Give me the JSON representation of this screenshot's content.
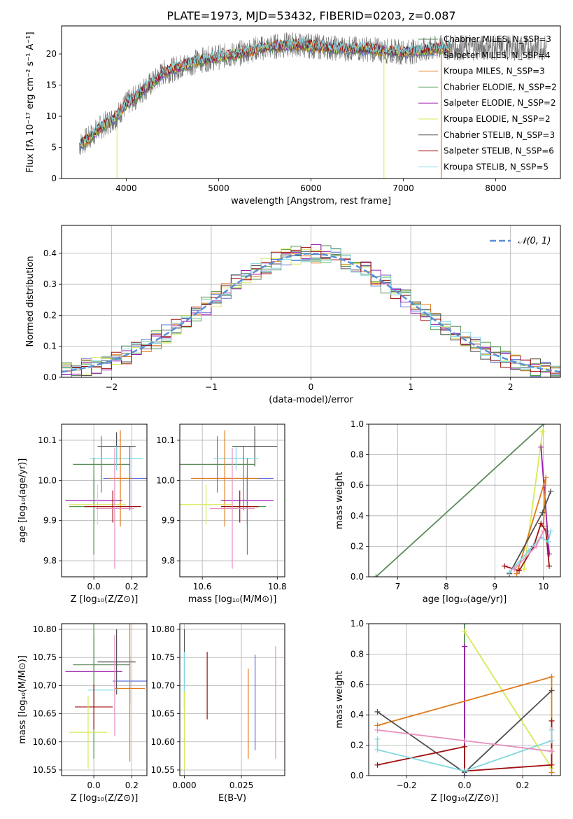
{
  "figure_title": "PLATE=1973, MJD=53432, FIBERID=0203, z=0.087",
  "colors": {
    "chabrier_miles": "#5a8a5a",
    "salpeter_miles": "#5a6fd8",
    "kroupa_miles": "#e07a1a",
    "chabrier_elodie": "#4a9a4a",
    "salpeter_elodie": "#9a1aaa",
    "kroupa_elodie": "#d8e858",
    "chabrier_stelib": "#505050",
    "salpeter_stelib": "#a01010",
    "kroupa_stelib": "#80d8e0",
    "pink": "#e890c0",
    "normal_curve": "#5a8fd8",
    "grid": "#b0b0b0"
  },
  "chart_data": [
    {
      "type": "line",
      "title": "PLATE=1973, MJD=53432, FIBERID=0203, z=0.087",
      "xlabel": "wavelength [Angstrom, rest frame]",
      "ylabel": "Flux [fλ 10⁻¹⁷ erg cm⁻² s⁻¹ A⁻¹]",
      "xlim": [
        3300,
        8700
      ],
      "ylim": [
        0,
        24.5
      ],
      "xticks": [
        4000,
        5000,
        6000,
        7000,
        8000
      ],
      "yticks": [
        0,
        5,
        10,
        15,
        20
      ],
      "grid": false,
      "legend_position": "right",
      "continuum_x": [
        3500,
        3600,
        3700,
        3800,
        3900,
        4000,
        4100,
        4200,
        4300,
        4400,
        4500,
        4600,
        4800,
        5000,
        5200,
        5400,
        5600,
        5800,
        6000,
        6200,
        6400,
        6600,
        6800,
        7000,
        7200,
        7400,
        7500
      ],
      "continuum_y": [
        5.5,
        6.5,
        8.0,
        9.0,
        10.0,
        12.0,
        13.0,
        14.5,
        15.5,
        17.0,
        17.5,
        18.0,
        19.0,
        19.5,
        20.0,
        20.8,
        21.2,
        21.5,
        21.3,
        21.0,
        20.8,
        20.8,
        20.5,
        20.3,
        20.5,
        21.0,
        21.0
      ],
      "series": [
        {
          "name": "Chabrier MILES, N_SSP=3",
          "color_key": "chabrier_miles"
        },
        {
          "name": "Salpeter MILES, N_SSP=4",
          "color_key": "salpeter_miles"
        },
        {
          "name": "Kroupa MILES, N_SSP=3",
          "color_key": "kroupa_miles"
        },
        {
          "name": "Chabrier ELODIE, N_SSP=2",
          "color_key": "chabrier_elodie"
        },
        {
          "name": "Salpeter ELODIE, N_SSP=2",
          "color_key": "salpeter_elodie"
        },
        {
          "name": "Kroupa ELODIE, N_SSP=2",
          "color_key": "kroupa_elodie"
        },
        {
          "name": "Chabrier STELIB, N_SSP=3",
          "color_key": "chabrier_stelib"
        },
        {
          "name": "Salpeter STELIB, N_SSP=6",
          "color_key": "salpeter_stelib"
        },
        {
          "name": "Kroupa STELIB, N_SSP=5",
          "color_key": "kroupa_stelib"
        }
      ]
    },
    {
      "type": "line",
      "xlabel": "(data-model)/error",
      "ylabel": "Normed distribution",
      "xlim": [
        -2.5,
        2.5
      ],
      "ylim": [
        0,
        0.49
      ],
      "xticks": [
        -2,
        -1,
        0,
        1,
        2
      ],
      "yticks": [
        0.0,
        0.1,
        0.2,
        0.3,
        0.4
      ],
      "grid": true,
      "legend_position": "top-right",
      "legend": "𝒩(0, 1)",
      "series_colors": [
        "chabrier_miles",
        "salpeter_miles",
        "kroupa_miles",
        "chabrier_elodie",
        "salpeter_elodie",
        "kroupa_elodie",
        "chabrier_stelib",
        "salpeter_stelib",
        "kroupa_stelib"
      ]
    },
    {
      "type": "scatter",
      "xlabel": "Z [log₁₀(Z/Z⊙)]",
      "ylabel": "age  [log₁₀(age/yr)]",
      "xlim": [
        -0.17,
        0.28
      ],
      "ylim": [
        9.76,
        10.14
      ],
      "xticks": [
        0.0,
        0.2
      ],
      "yticks": [
        9.8,
        9.9,
        10.0,
        10.1
      ],
      "grid": true,
      "points": [
        {
          "x": 0.12,
          "y": 10.085,
          "xerr": 0.1,
          "yerr": 0.035,
          "color_key": "chabrier_stelib"
        },
        {
          "x": 0.04,
          "y": 10.04,
          "xerr": 0.15,
          "yerr": 0.07,
          "color_key": "chabrier_miles"
        },
        {
          "x": 0.12,
          "y": 10.055,
          "xerr": 0.14,
          "yerr": 0.03,
          "color_key": "kroupa_stelib"
        },
        {
          "x": 0.19,
          "y": 10.005,
          "xerr": 0.14,
          "yerr": 0.08,
          "color_key": "salpeter_miles"
        },
        {
          "x": 0.14,
          "y": 10.005,
          "xerr": 0.06,
          "yerr": 0.12,
          "color_key": "kroupa_miles"
        },
        {
          "x": 0.0,
          "y": 9.95,
          "xerr": 0.15,
          "yerr": 0.06,
          "color_key": "salpeter_elodie"
        },
        {
          "x": 0.0,
          "y": 9.935,
          "xerr": 0.13,
          "yerr": 0.12,
          "color_key": "chabrier_elodie"
        },
        {
          "x": 0.02,
          "y": 9.94,
          "xerr": 0.15,
          "yerr": 0.05,
          "color_key": "kroupa_elodie"
        },
        {
          "x": 0.1,
          "y": 9.935,
          "xerr": 0.15,
          "yerr": 0.04,
          "color_key": "salpeter_stelib"
        },
        {
          "x": 0.11,
          "y": 9.93,
          "xerr": 0.1,
          "yerr": 0.15,
          "color_key": "pink"
        }
      ]
    },
    {
      "type": "scatter",
      "xlabel": "mass [log₁₀(M/M⊙)]",
      "xlim": [
        10.54,
        10.82
      ],
      "ylim": [
        9.76,
        10.14
      ],
      "xticks": [
        10.6,
        10.8
      ],
      "yticks": [
        9.8,
        9.9,
        10.0,
        10.1
      ],
      "grid": true,
      "points": [
        {
          "x": 10.74,
          "y": 10.085,
          "xerr": 0.06,
          "yerr": 0.05,
          "color_key": "chabrier_stelib"
        },
        {
          "x": 10.64,
          "y": 10.04,
          "xerr": 0.1,
          "yerr": 0.07,
          "color_key": "chabrier_miles"
        },
        {
          "x": 10.69,
          "y": 10.055,
          "xerr": 0.06,
          "yerr": 0.03,
          "color_key": "kroupa_stelib"
        },
        {
          "x": 10.71,
          "y": 10.005,
          "xerr": 0.08,
          "yerr": 0.08,
          "color_key": "salpeter_miles"
        },
        {
          "x": 10.66,
          "y": 10.005,
          "xerr": 0.09,
          "yerr": 0.12,
          "color_key": "kroupa_miles"
        },
        {
          "x": 10.72,
          "y": 9.95,
          "xerr": 0.07,
          "yerr": 0.06,
          "color_key": "salpeter_elodie"
        },
        {
          "x": 10.72,
          "y": 9.935,
          "xerr": 0.05,
          "yerr": 0.12,
          "color_key": "chabrier_elodie"
        },
        {
          "x": 10.61,
          "y": 9.94,
          "xerr": 0.07,
          "yerr": 0.05,
          "color_key": "kroupa_elodie"
        },
        {
          "x": 10.7,
          "y": 9.935,
          "xerr": 0.05,
          "yerr": 0.04,
          "color_key": "salpeter_stelib"
        },
        {
          "x": 10.68,
          "y": 9.93,
          "xerr": 0.06,
          "yerr": 0.15,
          "color_key": "pink"
        }
      ]
    },
    {
      "type": "line",
      "xlabel": "age  [log₁₀(age/yr)]",
      "ylabel": "mass weight",
      "xlim": [
        6.4,
        10.35
      ],
      "ylim": [
        0.0,
        1.0
      ],
      "xticks": [
        7,
        8,
        9,
        10
      ],
      "yticks": [
        0.0,
        0.2,
        0.4,
        0.6,
        0.8,
        1.0
      ],
      "grid": true,
      "series": [
        {
          "color_key": "chabrier_miles",
          "x": [
            6.55,
            10.0
          ],
          "y": [
            0.0,
            1.0
          ]
        },
        {
          "color_key": "kroupa_elodie",
          "x": [
            9.6,
            9.98
          ],
          "y": [
            0.05,
            0.95
          ]
        },
        {
          "color_key": "salpeter_elodie",
          "x": [
            9.95,
            10.12
          ],
          "y": [
            0.85,
            0.15
          ]
        },
        {
          "color_key": "kroupa_miles",
          "x": [
            9.45,
            10.05,
            10.0
          ],
          "y": [
            0.02,
            0.65,
            0.33
          ]
        },
        {
          "color_key": "chabrier_stelib",
          "x": [
            9.3,
            9.98,
            10.15
          ],
          "y": [
            0.02,
            0.42,
            0.56
          ]
        },
        {
          "color_key": "salpeter_stelib",
          "x": [
            9.2,
            9.5,
            9.8,
            9.95,
            10.05,
            10.12
          ],
          "y": [
            0.07,
            0.04,
            0.2,
            0.35,
            0.3,
            0.07
          ]
        },
        {
          "color_key": "kroupa_stelib",
          "x": [
            9.3,
            9.7,
            9.95,
            10.1,
            10.15
          ],
          "y": [
            0.03,
            0.17,
            0.26,
            0.23,
            0.3
          ]
        },
        {
          "color_key": "pink",
          "x": [
            9.4,
            9.85,
            10.0
          ],
          "y": [
            0.05,
            0.2,
            0.3
          ]
        }
      ]
    },
    {
      "type": "scatter",
      "xlabel": "Z [log₁₀(Z/Z⊙)]",
      "ylabel": "mass [log₁₀(M/M⊙)]",
      "xlim": [
        -0.17,
        0.28
      ],
      "ylim": [
        10.54,
        10.81
      ],
      "xticks": [
        0.0,
        0.2
      ],
      "yticks": [
        10.55,
        10.6,
        10.65,
        10.7,
        10.75,
        10.8
      ],
      "grid": true,
      "points": [
        {
          "x": 0.04,
          "y": 10.737,
          "xerr": 0.15,
          "yerr": 0.0,
          "color_key": "chabrier_miles"
        },
        {
          "x": 0.0,
          "y": 10.725,
          "xerr": 0.15,
          "yerr": 0.065,
          "color_key": "salpeter_elodie"
        },
        {
          "x": 0.12,
          "y": 10.742,
          "xerr": 0.1,
          "yerr": 0.058,
          "color_key": "chabrier_stelib"
        },
        {
          "x": 0.19,
          "y": 10.708,
          "xerr": 0.09,
          "yerr": 0.04,
          "color_key": "salpeter_miles"
        },
        {
          "x": 0.19,
          "y": 10.695,
          "xerr": 0.08,
          "yerr": 0.13,
          "color_key": "kroupa_miles"
        },
        {
          "x": 0.05,
          "y": 10.692,
          "xerr": 0.08,
          "yerr": 0.0,
          "color_key": "kroupa_stelib"
        },
        {
          "x": 0.11,
          "y": 10.7,
          "xerr": 0.0,
          "yerr": 0.09,
          "color_key": "pink"
        },
        {
          "x": 0.0,
          "y": 10.735,
          "xerr": 0.0,
          "yerr": 0.165,
          "color_key": "chabrier_elodie"
        },
        {
          "x": 0.0,
          "y": 10.662,
          "xerr": 0.1,
          "yerr": 0.04,
          "color_key": "salpeter_stelib"
        },
        {
          "x": -0.03,
          "y": 10.617,
          "xerr": 0.1,
          "yerr": 0.065,
          "color_key": "kroupa_elodie"
        }
      ]
    },
    {
      "type": "scatter",
      "xlabel": "E(B-V)",
      "xlim": [
        -0.002,
        0.044
      ],
      "ylim": [
        10.54,
        10.81
      ],
      "xticks": [
        0.0,
        0.025
      ],
      "yticks": [
        10.55,
        10.6,
        10.65,
        10.7,
        10.75,
        10.8
      ],
      "grid": true,
      "points": [
        {
          "x": 0.0,
          "y": 10.73,
          "yerr": 0.07,
          "color_key": "chabrier_stelib"
        },
        {
          "x": 0.0,
          "y": 10.68,
          "yerr": 0.08,
          "color_key": "kroupa_stelib"
        },
        {
          "x": 0.0,
          "y": 10.62,
          "yerr": 0.07,
          "color_key": "kroupa_elodie"
        },
        {
          "x": 0.01,
          "y": 10.7,
          "yerr": 0.06,
          "color_key": "salpeter_stelib"
        },
        {
          "x": 0.028,
          "y": 10.65,
          "yerr": 0.08,
          "color_key": "kroupa_miles"
        },
        {
          "x": 0.031,
          "y": 10.67,
          "yerr": 0.085,
          "color_key": "salpeter_miles"
        },
        {
          "x": 0.04,
          "y": 10.67,
          "yerr": 0.1,
          "color_key": "pink"
        }
      ]
    },
    {
      "type": "line",
      "xlabel": "Z [log₁₀(Z/Z⊙)]",
      "ylabel": "mass weight",
      "xlim": [
        -0.33,
        0.33
      ],
      "ylim": [
        0.0,
        1.0
      ],
      "xticks": [
        -0.2,
        0.0,
        0.2
      ],
      "yticks": [
        0.0,
        0.2,
        0.4,
        0.6,
        0.8,
        1.0
      ],
      "grid": true,
      "series": [
        {
          "color_key": "chabrier_miles",
          "x": [
            0.0,
            0.0
          ],
          "y": [
            0.0,
            1.0
          ]
        },
        {
          "color_key": "salpeter_elodie",
          "x": [
            0.0,
            0.0
          ],
          "y": [
            0.0,
            0.85
          ]
        },
        {
          "color_key": "kroupa_elodie",
          "x": [
            0.0,
            0.3
          ],
          "y": [
            0.95,
            0.05
          ]
        },
        {
          "color_key": "kroupa_miles",
          "x": [
            -0.3,
            0.3,
            0.3
          ],
          "y": [
            0.33,
            0.65,
            0.02
          ]
        },
        {
          "color_key": "chabrier_stelib",
          "x": [
            -0.3,
            0.0,
            0.3
          ],
          "y": [
            0.42,
            0.02,
            0.56
          ]
        },
        {
          "color_key": "salpeter_stelib",
          "x": [
            -0.3,
            0.0,
            0.0,
            0.3,
            0.3
          ],
          "y": [
            0.07,
            0.19,
            0.03,
            0.07,
            0.36
          ]
        },
        {
          "color_key": "kroupa_stelib",
          "x": [
            -0.3,
            -0.3,
            0.0,
            0.3,
            0.3
          ],
          "y": [
            0.24,
            0.17,
            0.03,
            0.23,
            0.3
          ]
        },
        {
          "color_key": "pink",
          "x": [
            -0.3,
            0.0,
            0.3
          ],
          "y": [
            0.3,
            0.23,
            0.16
          ]
        }
      ]
    }
  ]
}
